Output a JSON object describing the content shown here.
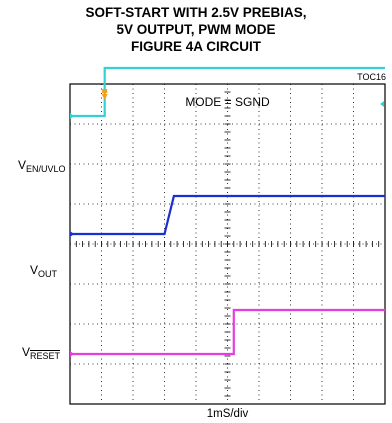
{
  "header": {
    "title_lines": [
      "SOFT-START WITH 2.5V PREBIAS,",
      "5V OUTPUT, PWM MODE",
      "FIGURE 4A CIRCUIT"
    ],
    "code": "TOC16"
  },
  "chart_data": {
    "type": "line",
    "title": "SOFT-START WITH 2.5V PREBIAS, 5V OUTPUT, PWM MODE FIGURE 4A CIRCUIT",
    "xlabel": "1mS/div",
    "annotation": "MODE = SGND",
    "grid": true,
    "divisions": {
      "x": 10,
      "y": 8
    },
    "x_unit": "ms",
    "xlim": [
      0,
      10
    ],
    "trace_labels": [
      {
        "id": "en",
        "main": "V",
        "sub": "EN/UVLO",
        "overline": ""
      },
      {
        "id": "out",
        "main": "V",
        "sub": "OUT",
        "overline": ""
      },
      {
        "id": "reset",
        "main": "V",
        "sub": "",
        "overline": "RESET"
      }
    ],
    "series": [
      {
        "id": "en",
        "color": "#33d1d6",
        "x": [
          0,
          1.1,
          1.1,
          10
        ],
        "y": [
          7.2,
          7.2,
          8.4,
          8.4
        ]
      },
      {
        "id": "out",
        "color": "#1a2fd1",
        "x": [
          0,
          3.0,
          3.3,
          10
        ],
        "y": [
          4.25,
          4.25,
          5.2,
          5.2
        ]
      },
      {
        "id": "reset",
        "color": "#e53de0",
        "x": [
          0,
          5.2,
          5.2,
          10
        ],
        "y": [
          1.25,
          1.25,
          2.35,
          2.35
        ]
      }
    ],
    "ground_markers": {
      "en": 7.2,
      "out": 4.25,
      "reset": 1.25
    },
    "trigger_marker_x": 1.1,
    "trigger_level_y": 7.5
  }
}
